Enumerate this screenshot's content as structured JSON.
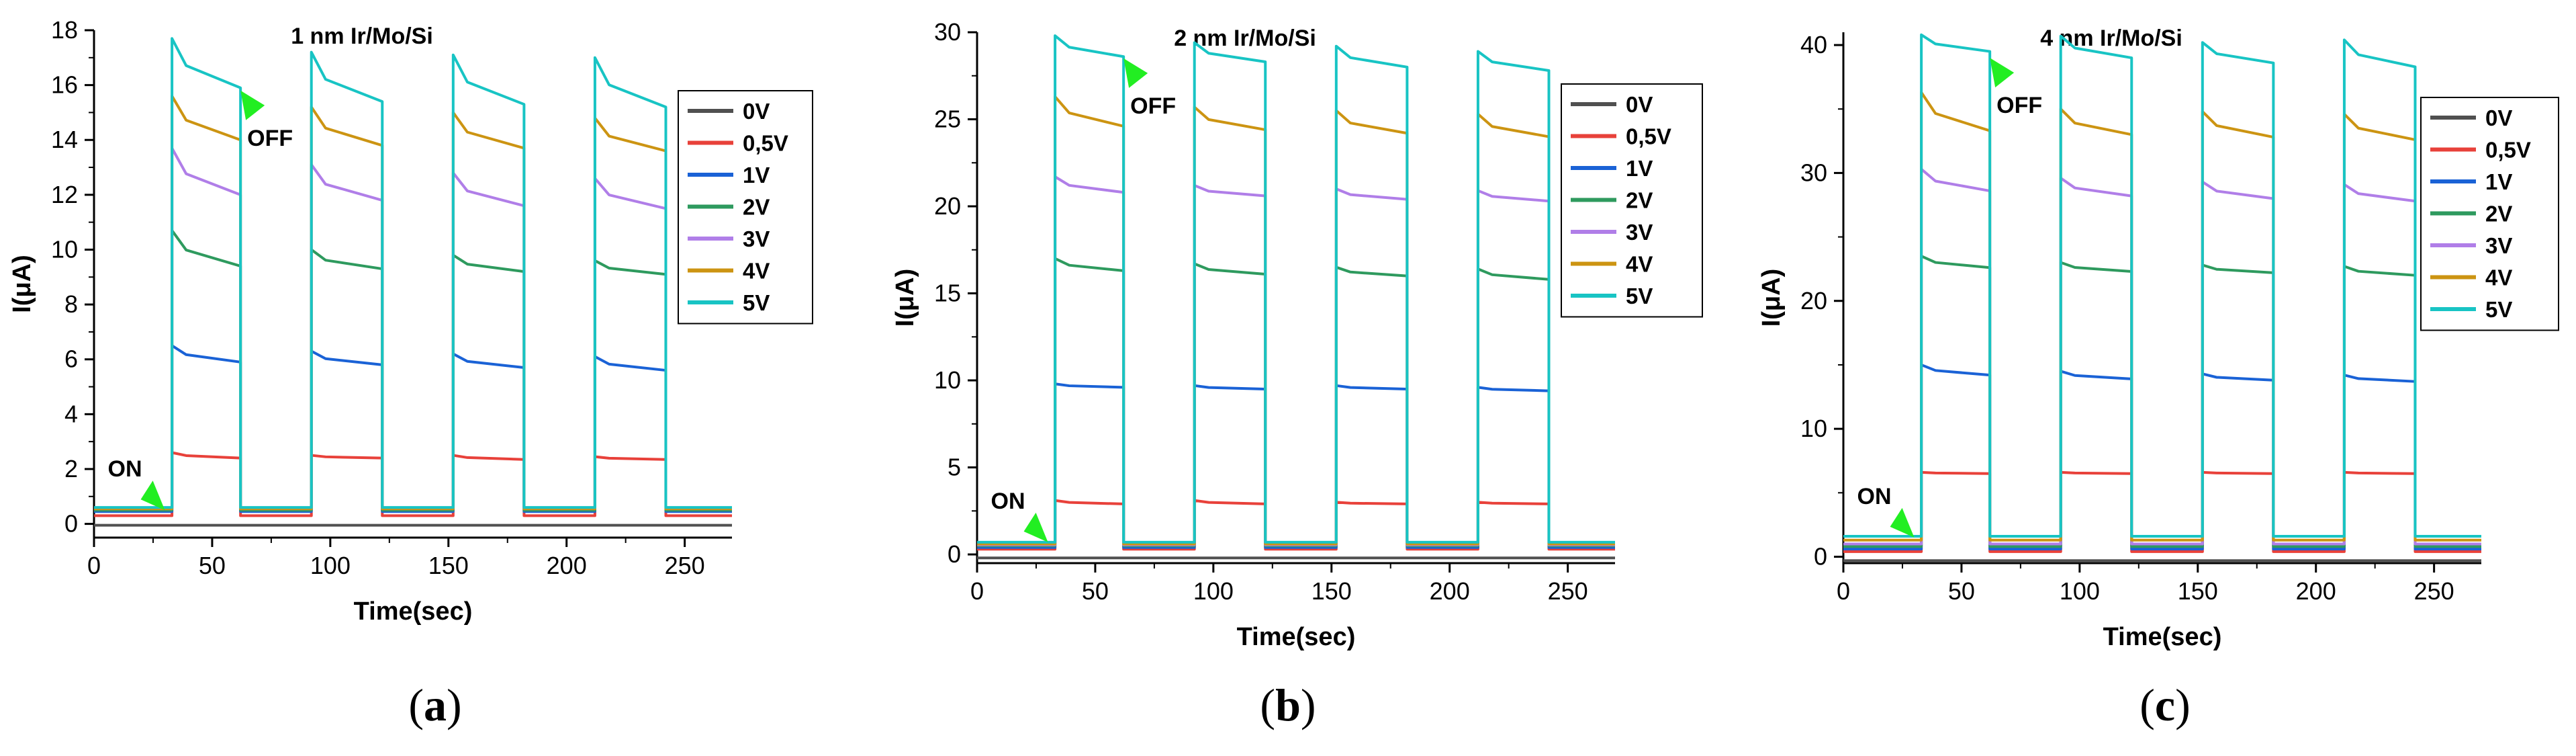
{
  "colors": {
    "0V": "#505050",
    "0,5V": "#e8413a",
    "1V": "#1a62d6",
    "2V": "#2e9a5e",
    "3V": "#b07ee8",
    "4V": "#cc9412",
    "5V": "#18c4c4",
    "arrow": "#22ee22"
  },
  "chart_data": [
    {
      "type": "line",
      "panel_caption": "a",
      "title": "1 nm Ir/Mo/Si",
      "xlabel": "Time(sec)",
      "ylabel": "I(μA)",
      "xlim": [
        0,
        270
      ],
      "ylim": [
        -0.5,
        18
      ],
      "xticks": [
        0,
        50,
        100,
        150,
        200,
        250
      ],
      "yticks": [
        0,
        2,
        4,
        6,
        8,
        10,
        12,
        14,
        16,
        18
      ],
      "pulses": [
        [
          33,
          62
        ],
        [
          92,
          122
        ],
        [
          152,
          182
        ],
        [
          212,
          242
        ]
      ],
      "on_annotation": {
        "label": "ON",
        "x": 30,
        "y": 0.5
      },
      "off_annotation": {
        "label": "OFF",
        "x": 62,
        "y": 15.8
      },
      "legend": [
        "0V",
        "0,5V",
        "1V",
        "2V",
        "3V",
        "4V",
        "5V"
      ],
      "series": [
        {
          "name": "0V",
          "baseline": -0.05,
          "peaks": [
            -0.05,
            -0.05,
            -0.05,
            -0.05
          ],
          "ends": [
            -0.05,
            -0.05,
            -0.05,
            -0.05
          ]
        },
        {
          "name": "0,5V",
          "baseline": 0.3,
          "peaks": [
            2.6,
            2.5,
            2.5,
            2.45
          ],
          "ends": [
            2.4,
            2.4,
            2.35,
            2.35
          ]
        },
        {
          "name": "1V",
          "baseline": 0.45,
          "peaks": [
            6.5,
            6.3,
            6.2,
            6.1
          ],
          "ends": [
            5.9,
            5.8,
            5.7,
            5.6
          ]
        },
        {
          "name": "2V",
          "baseline": 0.5,
          "peaks": [
            10.7,
            10.0,
            9.8,
            9.6
          ],
          "ends": [
            9.4,
            9.3,
            9.2,
            9.1
          ]
        },
        {
          "name": "3V",
          "baseline": 0.55,
          "peaks": [
            13.7,
            13.1,
            12.8,
            12.6
          ],
          "ends": [
            12.0,
            11.8,
            11.6,
            11.5
          ]
        },
        {
          "name": "4V",
          "baseline": 0.55,
          "peaks": [
            15.6,
            15.2,
            15.0,
            14.8
          ],
          "ends": [
            14.0,
            13.8,
            13.7,
            13.6
          ]
        },
        {
          "name": "5V",
          "baseline": 0.6,
          "peaks": [
            17.7,
            17.2,
            17.1,
            17.0
          ],
          "ends": [
            15.9,
            15.4,
            15.3,
            15.2
          ]
        }
      ]
    },
    {
      "type": "line",
      "panel_caption": "b",
      "title": "2 nm Ir/Mo/Si",
      "xlabel": "Time(sec)",
      "ylabel": "I(μA)",
      "xlim": [
        0,
        270
      ],
      "ylim": [
        -0.5,
        30
      ],
      "xticks": [
        0,
        50,
        100,
        150,
        200,
        250
      ],
      "yticks": [
        0,
        5,
        10,
        15,
        20,
        25,
        30
      ],
      "pulses": [
        [
          33,
          62
        ],
        [
          92,
          122
        ],
        [
          152,
          182
        ],
        [
          212,
          242
        ]
      ],
      "on_annotation": {
        "label": "ON",
        "x": 30,
        "y": 0.7
      },
      "off_annotation": {
        "label": "OFF",
        "x": 62,
        "y": 28.5
      },
      "legend": [
        "0V",
        "0,5V",
        "1V",
        "2V",
        "3V",
        "4V",
        "5V"
      ],
      "series": [
        {
          "name": "0V",
          "baseline": -0.2,
          "peaks": [
            -0.2,
            -0.2,
            -0.2,
            -0.2
          ],
          "ends": [
            -0.2,
            -0.2,
            -0.2,
            -0.2
          ]
        },
        {
          "name": "0,5V",
          "baseline": 0.3,
          "peaks": [
            3.1,
            3.1,
            3.0,
            3.0
          ],
          "ends": [
            2.9,
            2.9,
            2.9,
            2.9
          ]
        },
        {
          "name": "1V",
          "baseline": 0.4,
          "peaks": [
            9.8,
            9.7,
            9.7,
            9.6
          ],
          "ends": [
            9.6,
            9.5,
            9.5,
            9.4
          ]
        },
        {
          "name": "2V",
          "baseline": 0.5,
          "peaks": [
            17.0,
            16.7,
            16.5,
            16.4
          ],
          "ends": [
            16.3,
            16.1,
            16.0,
            15.8
          ]
        },
        {
          "name": "3V",
          "baseline": 0.55,
          "peaks": [
            21.7,
            21.2,
            21.0,
            20.9
          ],
          "ends": [
            20.8,
            20.6,
            20.4,
            20.3
          ]
        },
        {
          "name": "4V",
          "baseline": 0.6,
          "peaks": [
            26.3,
            25.7,
            25.5,
            25.3
          ],
          "ends": [
            24.6,
            24.4,
            24.2,
            24.0
          ]
        },
        {
          "name": "5V",
          "baseline": 0.7,
          "peaks": [
            29.8,
            29.4,
            29.2,
            28.9
          ],
          "ends": [
            28.6,
            28.3,
            28.0,
            27.8
          ]
        }
      ]
    },
    {
      "type": "line",
      "panel_caption": "c",
      "title": "4 nm Ir/Mo/Si",
      "xlabel": "Time(sec)",
      "ylabel": "I(μA)",
      "xlim": [
        0,
        270
      ],
      "ylim": [
        -0.5,
        41
      ],
      "xticks": [
        0,
        50,
        100,
        150,
        200,
        250
      ],
      "yticks": [
        0,
        10,
        20,
        30,
        40
      ],
      "pulses": [
        [
          33,
          62
        ],
        [
          92,
          122
        ],
        [
          152,
          182
        ],
        [
          212,
          242
        ]
      ],
      "on_annotation": {
        "label": "ON",
        "x": 30,
        "y": 1.5
      },
      "off_annotation": {
        "label": "OFF",
        "x": 62,
        "y": 39
      },
      "legend": [
        "0V",
        "0,5V",
        "1V",
        "2V",
        "3V",
        "4V",
        "5V"
      ],
      "series": [
        {
          "name": "0V",
          "baseline": -0.3,
          "peaks": [
            -0.3,
            -0.3,
            -0.3,
            -0.3
          ],
          "ends": [
            -0.3,
            -0.3,
            -0.3,
            -0.3
          ]
        },
        {
          "name": "0,5V",
          "baseline": 0.4,
          "peaks": [
            6.6,
            6.6,
            6.6,
            6.6
          ],
          "ends": [
            6.5,
            6.5,
            6.5,
            6.5
          ]
        },
        {
          "name": "1V",
          "baseline": 0.6,
          "peaks": [
            15.0,
            14.5,
            14.3,
            14.2
          ],
          "ends": [
            14.2,
            13.9,
            13.8,
            13.7
          ]
        },
        {
          "name": "2V",
          "baseline": 0.8,
          "peaks": [
            23.5,
            23.0,
            22.8,
            22.7
          ],
          "ends": [
            22.6,
            22.3,
            22.2,
            22.0
          ]
        },
        {
          "name": "3V",
          "baseline": 1.0,
          "peaks": [
            30.3,
            29.6,
            29.3,
            29.1
          ],
          "ends": [
            28.6,
            28.2,
            28.0,
            27.8
          ]
        },
        {
          "name": "4V",
          "baseline": 1.3,
          "peaks": [
            36.3,
            35.0,
            34.8,
            34.6
          ],
          "ends": [
            33.3,
            33.0,
            32.8,
            32.6
          ]
        },
        {
          "name": "5V",
          "baseline": 1.6,
          "peaks": [
            40.8,
            40.7,
            40.2,
            40.4
          ],
          "ends": [
            39.5,
            39.0,
            38.6,
            38.3
          ]
        }
      ]
    }
  ]
}
